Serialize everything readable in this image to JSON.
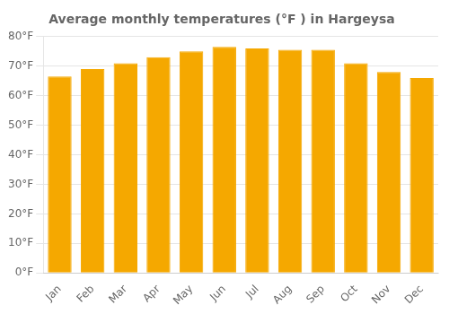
{
  "chart_data": {
    "type": "bar",
    "title": "Average monthly temperatures (°F ) in Hargeysa",
    "categories": [
      "Jan",
      "Feb",
      "Mar",
      "Apr",
      "May",
      "Jun",
      "Jul",
      "Aug",
      "Sep",
      "Oct",
      "Nov",
      "Dec"
    ],
    "values": [
      66.5,
      69,
      71,
      73,
      75,
      76.5,
      76,
      75.5,
      75.5,
      71,
      68,
      66
    ],
    "color": "#F5A800",
    "ylim": [
      0,
      80
    ],
    "yticks": [
      {
        "value": 0,
        "label": "0°F"
      },
      {
        "value": 10,
        "label": "10°F"
      },
      {
        "value": 20,
        "label": "20°F"
      },
      {
        "value": 30,
        "label": "30°F"
      },
      {
        "value": 40,
        "label": "40°F"
      },
      {
        "value": 50,
        "label": "50°F"
      },
      {
        "value": 60,
        "label": "60°F"
      },
      {
        "value": 70,
        "label": "70°F"
      },
      {
        "value": 80,
        "label": "80°F"
      }
    ],
    "grid": true
  }
}
